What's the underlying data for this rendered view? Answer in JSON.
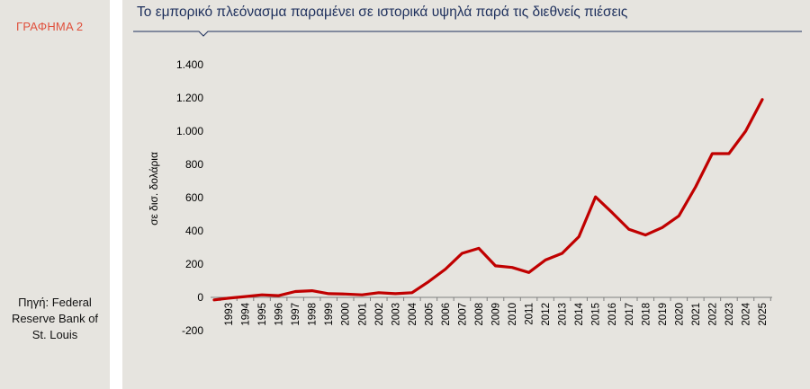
{
  "sidebar": {
    "figure_label": "ΓΡΑΦΗΜΑ 2",
    "source_lines": [
      "Πηγή: Federal",
      "Reserve Bank of",
      "St. Louis"
    ]
  },
  "colors": {
    "accent": "#e0503c",
    "title": "#1d2f5c",
    "series": "#c00000",
    "background": "#e6e4df",
    "divider": "#ffffff"
  },
  "chart_data": {
    "type": "line",
    "title": "Το εμπορικό πλεόνασμα παραμένει σε ιστορικά υψηλά παρά τις διεθνείς πιέσεις",
    "xlabel": "",
    "ylabel": "σε δισ. δολάρια",
    "ylim": [
      -200,
      1400
    ],
    "yticks": [
      -200,
      0,
      200,
      400,
      600,
      800,
      1000,
      1200,
      1400
    ],
    "ytick_labels": [
      "-200",
      "0",
      "200",
      "400",
      "600",
      "800",
      "1.000",
      "1.200",
      "1.400"
    ],
    "grid": false,
    "legend": "none",
    "x": [
      "1993",
      "1994",
      "1995",
      "1996",
      "1997",
      "1998",
      "1999",
      "2000",
      "2001",
      "2002",
      "2003",
      "2004",
      "2005",
      "2006",
      "2007",
      "2008",
      "2009",
      "2010",
      "2011",
      "2012",
      "2013",
      "2014",
      "2015",
      "2016",
      "2017",
      "2018",
      "2019",
      "2020",
      "2021",
      "2022",
      "2023",
      "2024",
      "2025"
    ],
    "series": [
      {
        "values": [
          -5,
          5,
          15,
          10,
          35,
          40,
          22,
          20,
          15,
          28,
          22,
          28,
          95,
          170,
          265,
          295,
          190,
          180,
          150,
          225,
          265,
          365,
          605,
          510,
          410,
          375,
          420,
          490,
          665,
          865,
          865,
          1000,
          1190
        ]
      }
    ],
    "x_extra_start": {
      "value": -15
    }
  }
}
